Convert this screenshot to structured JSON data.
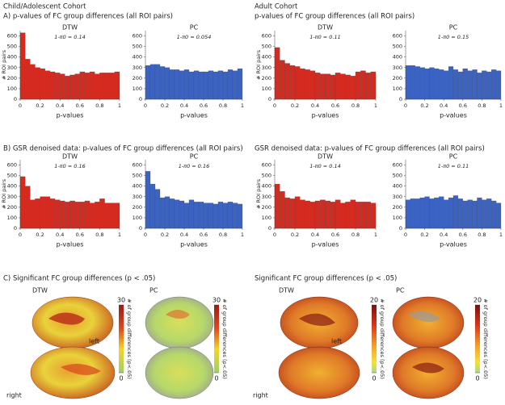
{
  "headers": {
    "child": "Child/Adolescent Cohort",
    "adult": "Adult Cohort",
    "child_a": "A) p-values of FC group differences (all ROI pairs)",
    "adult_a": "p-values of FC group differences (all ROI pairs)",
    "child_b": "B) GSR denoised data: p-values of FC group differences (all ROI pairs)",
    "adult_b": "GSR denoised data: p-values of FC group differences (all ROI pairs)",
    "child_c": "C) Significant FC group differences (p < .05)",
    "adult_c": "Significant FC group differences (p < .05)"
  },
  "brains": [
    {
      "title": "DTW",
      "left": "left",
      "right": "right"
    },
    {
      "title": "PC"
    },
    {
      "title": "DTW",
      "left": "left",
      "right": "right"
    },
    {
      "title": "PC"
    }
  ],
  "colorbars": [
    {
      "ticks": [
        0,
        30
      ],
      "label": "# of group differences (p<.05)"
    },
    {
      "ticks": [
        0,
        30
      ],
      "label": "# of group differences (p<.05)"
    },
    {
      "ticks": [
        0,
        20
      ],
      "label": "# of group differences (p<.05)"
    },
    {
      "ticks": [
        0,
        20
      ],
      "label": "# of group differences (p<.05)"
    }
  ],
  "chart_data": [
    {
      "type": "histogram",
      "title": "DTW",
      "subtitle": "1-π0 = 0.14",
      "xlabel": "p-values",
      "ylabel": "# ROI pairs",
      "color": "#d42a20",
      "bins": [
        0,
        0.05,
        0.1,
        0.15,
        0.2,
        0.25,
        0.3,
        0.35,
        0.4,
        0.45,
        0.5,
        0.55,
        0.6,
        0.65,
        0.7,
        0.75,
        0.8,
        0.85,
        0.9,
        0.95,
        1
      ],
      "values": [
        630,
        380,
        330,
        300,
        290,
        270,
        260,
        250,
        240,
        220,
        230,
        240,
        260,
        250,
        260,
        240,
        250,
        250,
        250,
        260
      ],
      "xlim": [
        0,
        1
      ],
      "xticks": [
        0,
        0.2,
        0.4,
        0.6,
        0.8,
        1
      ],
      "ylim": [
        0,
        650
      ],
      "yticks": [
        0,
        100,
        200,
        300,
        400,
        500,
        600
      ]
    },
    {
      "type": "histogram",
      "title": "PC",
      "subtitle": "1-π0 = 0.054",
      "xlabel": "p-values",
      "color": "#3a63c4",
      "bins": [
        0,
        0.05,
        0.1,
        0.15,
        0.2,
        0.25,
        0.3,
        0.35,
        0.4,
        0.45,
        0.5,
        0.55,
        0.6,
        0.65,
        0.7,
        0.75,
        0.8,
        0.85,
        0.9,
        0.95,
        1
      ],
      "values": [
        320,
        330,
        330,
        310,
        300,
        280,
        280,
        270,
        280,
        260,
        270,
        260,
        260,
        270,
        260,
        270,
        260,
        280,
        270,
        290
      ],
      "xlim": [
        0,
        1
      ],
      "xticks": [
        0,
        0.2,
        0.4,
        0.6,
        0.8,
        1
      ],
      "ylim": [
        0,
        650
      ],
      "yticks": [
        0,
        100,
        200,
        300,
        400,
        500,
        600
      ]
    },
    {
      "type": "histogram",
      "title": "DTW",
      "subtitle": "1-π0 = 0.11",
      "xlabel": "p-values",
      "ylabel": "# ROI pairs",
      "color": "#d42a20",
      "bins": [
        0,
        0.05,
        0.1,
        0.15,
        0.2,
        0.25,
        0.3,
        0.35,
        0.4,
        0.45,
        0.5,
        0.55,
        0.6,
        0.65,
        0.7,
        0.75,
        0.8,
        0.85,
        0.9,
        0.95,
        1
      ],
      "values": [
        490,
        370,
        340,
        320,
        310,
        290,
        280,
        270,
        250,
        240,
        240,
        230,
        250,
        240,
        230,
        220,
        260,
        270,
        250,
        260
      ],
      "xlim": [
        0,
        1
      ],
      "xticks": [
        0,
        0.2,
        0.4,
        0.6,
        0.8,
        1
      ],
      "ylim": [
        0,
        650
      ],
      "yticks": [
        0,
        100,
        200,
        300,
        400,
        500,
        600
      ]
    },
    {
      "type": "histogram",
      "title": "PC",
      "subtitle": "1-π0 = 0.15",
      "xlabel": "p-values",
      "color": "#3a63c4",
      "bins": [
        0,
        0.05,
        0.1,
        0.15,
        0.2,
        0.25,
        0.3,
        0.35,
        0.4,
        0.45,
        0.5,
        0.55,
        0.6,
        0.65,
        0.7,
        0.75,
        0.8,
        0.85,
        0.9,
        0.95,
        1
      ],
      "values": [
        320,
        320,
        310,
        300,
        290,
        300,
        290,
        280,
        270,
        310,
        280,
        260,
        290,
        270,
        280,
        250,
        270,
        260,
        280,
        270
      ],
      "xlim": [
        0,
        1
      ],
      "xticks": [
        0,
        0.2,
        0.4,
        0.6,
        0.8,
        1
      ],
      "ylim": [
        0,
        650
      ],
      "yticks": [
        0,
        100,
        200,
        300,
        400,
        500,
        600
      ]
    },
    {
      "type": "histogram",
      "title": "DTW",
      "subtitle": "1-π0 = 0.16",
      "xlabel": "p-values",
      "ylabel": "# ROI pairs",
      "color": "#d42a20",
      "bins": [
        0,
        0.05,
        0.1,
        0.15,
        0.2,
        0.25,
        0.3,
        0.35,
        0.4,
        0.45,
        0.5,
        0.55,
        0.6,
        0.65,
        0.7,
        0.75,
        0.8,
        0.85,
        0.9,
        0.95,
        1
      ],
      "values": [
        490,
        400,
        270,
        280,
        300,
        300,
        280,
        270,
        260,
        250,
        260,
        250,
        250,
        260,
        240,
        250,
        280,
        240,
        240,
        240
      ],
      "xlim": [
        0,
        1
      ],
      "xticks": [
        0,
        0.2,
        0.4,
        0.6,
        0.8,
        1
      ],
      "ylim": [
        0,
        650
      ],
      "yticks": [
        0,
        100,
        200,
        300,
        400,
        500,
        600
      ]
    },
    {
      "type": "histogram",
      "title": "PC",
      "subtitle": "1-π0 = 0.16",
      "xlabel": "p-values",
      "color": "#3a63c4",
      "bins": [
        0,
        0.05,
        0.1,
        0.15,
        0.2,
        0.25,
        0.3,
        0.35,
        0.4,
        0.45,
        0.5,
        0.55,
        0.6,
        0.65,
        0.7,
        0.75,
        0.8,
        0.85,
        0.9,
        0.95,
        1
      ],
      "values": [
        540,
        420,
        370,
        290,
        300,
        280,
        270,
        260,
        240,
        270,
        250,
        250,
        240,
        240,
        230,
        250,
        240,
        250,
        240,
        230
      ],
      "xlim": [
        0,
        1
      ],
      "xticks": [
        0,
        0.2,
        0.4,
        0.6,
        0.8,
        1
      ],
      "ylim": [
        0,
        650
      ],
      "yticks": [
        0,
        100,
        200,
        300,
        400,
        500,
        600
      ]
    },
    {
      "type": "histogram",
      "title": "DTW",
      "subtitle": "1-π0 = 0.14",
      "xlabel": "p-values",
      "ylabel": "# ROI pairs",
      "color": "#d42a20",
      "bins": [
        0,
        0.05,
        0.1,
        0.15,
        0.2,
        0.25,
        0.3,
        0.35,
        0.4,
        0.45,
        0.5,
        0.55,
        0.6,
        0.65,
        0.7,
        0.75,
        0.8,
        0.85,
        0.9,
        0.95,
        1
      ],
      "values": [
        420,
        350,
        290,
        280,
        300,
        270,
        260,
        250,
        260,
        270,
        260,
        250,
        270,
        240,
        250,
        270,
        250,
        250,
        250,
        240
      ],
      "xlim": [
        0,
        1
      ],
      "xticks": [
        0,
        0.2,
        0.4,
        0.6,
        0.8,
        1
      ],
      "ylim": [
        0,
        650
      ],
      "yticks": [
        0,
        100,
        200,
        300,
        400,
        500,
        600
      ]
    },
    {
      "type": "histogram",
      "title": "PC",
      "subtitle": "1-π0 = 0.11",
      "xlabel": "p-values",
      "color": "#3a63c4",
      "bins": [
        0,
        0.05,
        0.1,
        0.15,
        0.2,
        0.25,
        0.3,
        0.35,
        0.4,
        0.45,
        0.5,
        0.55,
        0.6,
        0.65,
        0.7,
        0.75,
        0.8,
        0.85,
        0.9,
        0.95,
        1
      ],
      "values": [
        270,
        280,
        280,
        290,
        300,
        280,
        290,
        300,
        270,
        290,
        310,
        280,
        260,
        270,
        260,
        290,
        270,
        280,
        260,
        240
      ],
      "xlim": [
        0,
        1
      ],
      "xticks": [
        0,
        0.2,
        0.4,
        0.6,
        0.8,
        1
      ],
      "ylim": [
        0,
        650
      ],
      "yticks": [
        0,
        100,
        200,
        300,
        400,
        500,
        600
      ]
    }
  ]
}
